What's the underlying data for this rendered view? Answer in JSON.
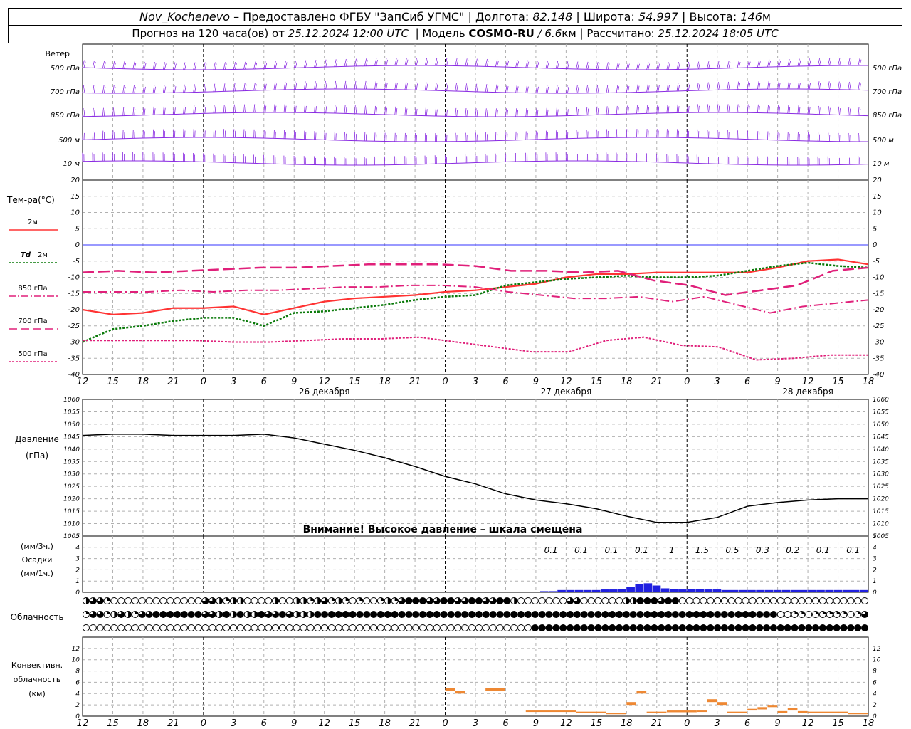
{
  "header": {
    "station": "Nov_Kochenevo",
    "provider": "– Предоставлено ФГБУ \"ЗапСиб УГМС\"",
    "lon_label": "Долгота:",
    "lon_value": "82.148",
    "lat_label": "Широта:",
    "lat_value": "54.997",
    "alt_label": "Высота:",
    "alt_value": "146",
    "alt_unit": "м",
    "sep": "|",
    "forecast_label": "Прогноз на 120 часа(ов) от",
    "forecast_time": "25.12.2024 12:00 UTC",
    "model_label": "Модель",
    "model_name": "COSMO-RU",
    "model_res": "/ 6.6",
    "model_res_unit": "км",
    "computed_label": "Рассчитано:",
    "computed_time": "25.12.2024 18:05 UTC"
  },
  "colors": {
    "wind": "#8a2be2",
    "t2m": "#ff3333",
    "td2m": "#0a7a0a",
    "t850": "#e0207a",
    "t700": "#e0207a",
    "t500": "#e0207a",
    "zero_line": "#3333ff",
    "pressure": "#000000",
    "precip": "#2020e0",
    "convective": "#ee8833"
  },
  "chart_data": [
    {
      "type": "wind-barbs",
      "title": "Ветер",
      "levels": [
        "500 гПа",
        "700 гПа",
        "850 гПа",
        "500 м",
        "10 м"
      ]
    },
    {
      "type": "line",
      "title": "Тем-ра(°C)",
      "ylim": [
        -40,
        20
      ],
      "yticks": [
        20,
        15,
        10,
        5,
        0,
        -5,
        -10,
        -15,
        -20,
        -25,
        -30,
        -35,
        -40
      ],
      "x_hours_since_start": [
        0,
        3,
        6,
        9,
        12,
        15,
        18,
        21,
        24,
        27,
        30,
        33,
        36,
        39,
        42,
        45,
        48,
        51,
        54,
        57,
        60,
        63,
        66,
        69,
        72,
        75,
        78
      ],
      "series": [
        {
          "name": "2м",
          "values": [
            -20,
            -21.5,
            -21,
            -19.5,
            -19.5,
            -19,
            -21.5,
            -19.5,
            -17.5,
            -16.5,
            -16,
            -15.5,
            -14.5,
            -14,
            -13,
            -12,
            -10,
            -9,
            -9,
            -8.5,
            -8.5,
            -8.5,
            -8.5,
            -7,
            -5,
            -4.5,
            -6
          ]
        },
        {
          "name": "Td 2м",
          "values": [
            -30,
            -26,
            -25,
            -23.5,
            -22.5,
            -22.5,
            -25,
            -21,
            -20.5,
            -19.5,
            -18.5,
            -17,
            -16,
            -15.5,
            -12.5,
            -11.5,
            -10.5,
            -10,
            -9.5,
            -10,
            -10,
            -9.5,
            -8,
            -6.5,
            -5.5,
            -6.5,
            -7
          ]
        },
        {
          "name": "850 гПа",
          "values": [
            -14.5,
            -14.5,
            -14.5,
            -14,
            -14.5,
            -14,
            -14,
            -13.5,
            -13,
            -13,
            -12.5,
            -12.5,
            -13,
            -14.5,
            -15.5,
            -16.5,
            -16.5,
            -16,
            -17.5,
            -16,
            -18.5,
            -21,
            -19,
            -18,
            -17
          ]
        },
        {
          "name": "700 гПа",
          "values": [
            -8.5,
            -8,
            -8.5,
            -8,
            -7.5,
            -7,
            -7,
            -6.5,
            -6,
            -6,
            -6,
            -6.5,
            -8,
            -8,
            -8.5,
            -8,
            -11,
            -12.5,
            -15.5,
            -14,
            -12.5,
            -8,
            -7
          ]
        },
        {
          "name": "500 гПа",
          "values": [
            -29.5,
            -29.5,
            -29.5,
            -29.5,
            -30,
            -30,
            -29.5,
            -29,
            -29,
            -28.5,
            -30,
            -31.5,
            -33,
            -33,
            -29.5,
            -28.5,
            -31,
            -31.5,
            -35.5,
            -35,
            -34,
            -34
          ]
        }
      ]
    },
    {
      "type": "line",
      "title": "Давление",
      "ylabel": "(гПа)",
      "ylim": [
        1005,
        1060
      ],
      "yticks": [
        1060,
        1055,
        1050,
        1045,
        1040,
        1035,
        1030,
        1025,
        1020,
        1015,
        1010,
        1005
      ],
      "x_hours_since_start": [
        0,
        3,
        6,
        9,
        12,
        15,
        18,
        21,
        24,
        27,
        30,
        33,
        36,
        39,
        42,
        45,
        48,
        51,
        54,
        57,
        60,
        63,
        66,
        69,
        72,
        75,
        78
      ],
      "series": [
        {
          "name": "Давление",
          "values": [
            1045.5,
            1046,
            1046,
            1045.5,
            1045.5,
            1045.5,
            1046,
            1044.5,
            1042,
            1039.5,
            1036.5,
            1033,
            1029,
            1026,
            1022,
            1019.5,
            1018,
            1016,
            1013,
            1010.5,
            1010.5,
            1012.5,
            1017,
            1018.5,
            1019.5,
            1020,
            1020
          ]
        }
      ],
      "annotation": "Внимание! Высокое давление – шкала смещена"
    },
    {
      "type": "bar",
      "title": "Осадки",
      "ylabel_top": "(мм/3ч.)",
      "ylabel_bottom": "(мм/1ч.)",
      "ylim": [
        0,
        5
      ],
      "yticks": [
        5,
        4,
        3,
        2,
        1,
        0
      ],
      "totals_3h": [
        "0.1",
        "0.1",
        "0.1",
        "0.1",
        "1",
        "1.5",
        "0.5",
        "0.3",
        "0.2",
        "0.1",
        "0.1"
      ],
      "hourly_mm": [
        0,
        0,
        0,
        0,
        0,
        0,
        0,
        0,
        0,
        0,
        0,
        0,
        0,
        0,
        0,
        0,
        0,
        0,
        0,
        0,
        0,
        0,
        0,
        0,
        0,
        0,
        0,
        0,
        0,
        0,
        0,
        0,
        0,
        0,
        0,
        0,
        0,
        0,
        0,
        0,
        0,
        0,
        0,
        0,
        0,
        0,
        0.05,
        0.05,
        0.05,
        0.05,
        0.05,
        0.05,
        0.05,
        0.1,
        0.1,
        0.2,
        0.2,
        0.2,
        0.2,
        0.2,
        0.25,
        0.25,
        0.3,
        0.5,
        0.7,
        0.8,
        0.6,
        0.35,
        0.3,
        0.25,
        0.3,
        0.3,
        0.25,
        0.25,
        0.2,
        0.2,
        0.2,
        0.2,
        0.2,
        0.2,
        0.2,
        0.2,
        0.2,
        0.2,
        0.2,
        0.2,
        0.2,
        0.2,
        0.2,
        0.2,
        0.2
      ]
    },
    {
      "type": "table",
      "title": "Облачность",
      "legend": "symbols: 0=clear, 1=quarter, 2=half, 3=three-quarter, 4=overcast",
      "rows": [
        [
          2,
          3,
          3,
          1,
          0,
          0,
          0,
          0,
          0,
          0,
          0,
          0,
          0,
          0,
          0,
          0,
          0,
          3,
          3,
          2,
          1,
          2,
          2,
          0,
          0,
          0,
          0,
          2,
          0,
          0,
          2,
          2,
          1,
          2,
          3,
          1,
          2,
          1,
          0,
          1,
          0,
          0,
          1,
          2,
          1,
          3,
          4,
          4,
          4,
          3,
          3,
          4,
          4,
          3,
          3,
          4,
          4,
          3,
          3,
          4,
          4,
          2,
          0,
          0,
          0,
          0,
          0,
          0,
          0,
          3,
          3,
          0,
          0,
          0,
          0,
          0,
          0,
          2,
          2,
          4,
          4,
          4,
          3,
          4,
          4,
          0,
          0,
          0,
          0,
          0,
          0,
          0,
          0,
          0,
          0,
          0,
          0,
          0,
          0,
          0,
          0,
          0,
          0,
          0,
          0,
          0,
          0,
          0,
          0,
          0,
          0,
          0
        ],
        [
          1,
          3,
          3,
          1,
          2,
          3,
          2,
          1,
          3,
          3,
          4,
          4,
          4,
          4,
          4,
          4,
          4,
          3,
          3,
          2,
          4,
          2,
          4,
          2,
          2,
          4,
          3,
          3,
          4,
          3,
          2,
          2,
          2,
          4,
          4,
          4,
          4,
          4,
          4,
          4,
          4,
          4,
          4,
          4,
          4,
          4,
          4,
          4,
          4,
          4,
          4,
          4,
          4,
          4,
          4,
          4,
          4,
          4,
          4,
          4,
          4,
          4,
          4,
          4,
          4,
          4,
          4,
          4,
          4,
          4,
          4,
          4,
          4,
          4,
          4,
          4,
          4,
          4,
          4,
          4,
          4,
          4,
          4,
          4,
          4,
          4,
          4,
          4,
          4,
          4,
          4,
          4,
          4,
          4,
          4,
          4,
          4,
          4,
          4,
          0,
          0,
          1,
          1,
          0,
          1,
          1,
          1,
          1,
          1,
          0,
          1,
          3
        ],
        [
          0,
          0,
          0,
          0,
          0,
          0,
          0,
          0,
          0,
          0,
          0,
          0,
          0,
          0,
          0,
          0,
          0,
          0,
          0,
          0,
          0,
          0,
          0,
          0,
          0,
          0,
          0,
          0,
          0,
          0,
          0,
          0,
          0,
          0,
          0,
          0,
          0,
          0,
          0,
          0,
          0,
          0,
          0,
          0,
          0,
          0,
          0,
          0,
          0,
          0,
          0,
          0,
          0,
          0,
          0,
          0,
          0,
          0,
          0,
          0,
          0,
          0,
          0,
          0,
          4,
          4,
          4,
          4,
          4,
          4,
          4,
          4,
          4,
          4,
          4,
          4,
          4,
          4,
          4,
          4,
          4,
          4,
          4,
          4,
          4,
          4,
          4,
          4,
          4,
          4,
          4,
          4,
          4,
          4,
          4,
          4,
          4,
          4,
          4,
          4,
          4,
          4,
          4,
          4,
          4,
          4,
          4,
          4,
          4,
          4,
          4,
          4
        ]
      ]
    },
    {
      "type": "bar",
      "title": "Конвективн. облачность (км)",
      "ylim": [
        0,
        14
      ],
      "yticks": [
        12,
        10,
        8,
        6,
        4,
        2,
        0
      ],
      "segments": [
        {
          "x0": 36,
          "x1": 37,
          "base": 4.5,
          "top": 5
        },
        {
          "x0": 37,
          "x1": 38,
          "base": 4,
          "top": 4.5
        },
        {
          "x0": 40,
          "x1": 42,
          "base": 4.5,
          "top": 5
        },
        {
          "x0": 44,
          "x1": 49,
          "base": 0.8,
          "top": 1
        },
        {
          "x0": 49,
          "x1": 52,
          "base": 0.6,
          "top": 0.8
        },
        {
          "x0": 52,
          "x1": 54,
          "base": 0.4,
          "top": 0.6
        },
        {
          "x0": 54,
          "x1": 55,
          "base": 2,
          "top": 2.5
        },
        {
          "x0": 55,
          "x1": 56,
          "base": 4,
          "top": 4.5
        },
        {
          "x0": 56,
          "x1": 58,
          "base": 0.6,
          "top": 0.8
        },
        {
          "x0": 58,
          "x1": 61,
          "base": 0.7,
          "top": 1
        },
        {
          "x0": 61,
          "x1": 62,
          "base": 0.8,
          "top": 1
        },
        {
          "x0": 62,
          "x1": 63,
          "base": 2.5,
          "top": 3
        },
        {
          "x0": 63,
          "x1": 64,
          "base": 2,
          "top": 2.5
        },
        {
          "x0": 64,
          "x1": 66,
          "base": 0.6,
          "top": 0.8
        },
        {
          "x0": 66,
          "x1": 67,
          "base": 1.0,
          "top": 1.3
        },
        {
          "x0": 67,
          "x1": 68,
          "base": 1.2,
          "top": 1.6
        },
        {
          "x0": 68,
          "x1": 69,
          "base": 1.6,
          "top": 2
        },
        {
          "x0": 69,
          "x1": 70,
          "base": 0.6,
          "top": 0.9
        },
        {
          "x0": 70,
          "x1": 71,
          "base": 1.0,
          "top": 1.5
        },
        {
          "x0": 71,
          "x1": 72,
          "base": 0.6,
          "top": 0.9
        },
        {
          "x0": 72,
          "x1": 76,
          "base": 0.6,
          "top": 0.8
        },
        {
          "x0": 76,
          "x1": 78,
          "base": 0.4,
          "top": 0.6
        }
      ]
    }
  ],
  "time_axis": {
    "hour_labels": [
      "12",
      "15",
      "18",
      "21",
      "0",
      "3",
      "6",
      "9",
      "12",
      "15",
      "18",
      "21",
      "0",
      "3",
      "6",
      "9",
      "12",
      "15",
      "18",
      "21",
      "0",
      "3",
      "6",
      "9",
      "12",
      "15",
      "18"
    ],
    "day_labels": [
      "26 декабря",
      "27 декабря",
      "28 декабря"
    ]
  },
  "labels": {
    "wind": "Ветер",
    "temp": "Тем-ра(°C)",
    "t2m": "2м",
    "td_sym": "Td",
    "td_lvl": "2м",
    "t850": "850 гПа",
    "t700": "700 гПа",
    "t500": "500 гПа",
    "press1": "Давление",
    "press2": "(гПа)",
    "pwarn": "Внимание! Высокое давление – шкала смещена",
    "prec1": "(мм/3ч.)",
    "prec2": "Осадки",
    "prec3": "(мм/1ч.)",
    "cloud": "Облачность",
    "conv1": "Конвективн.",
    "conv2": "облачность",
    "conv3": "(км)"
  }
}
